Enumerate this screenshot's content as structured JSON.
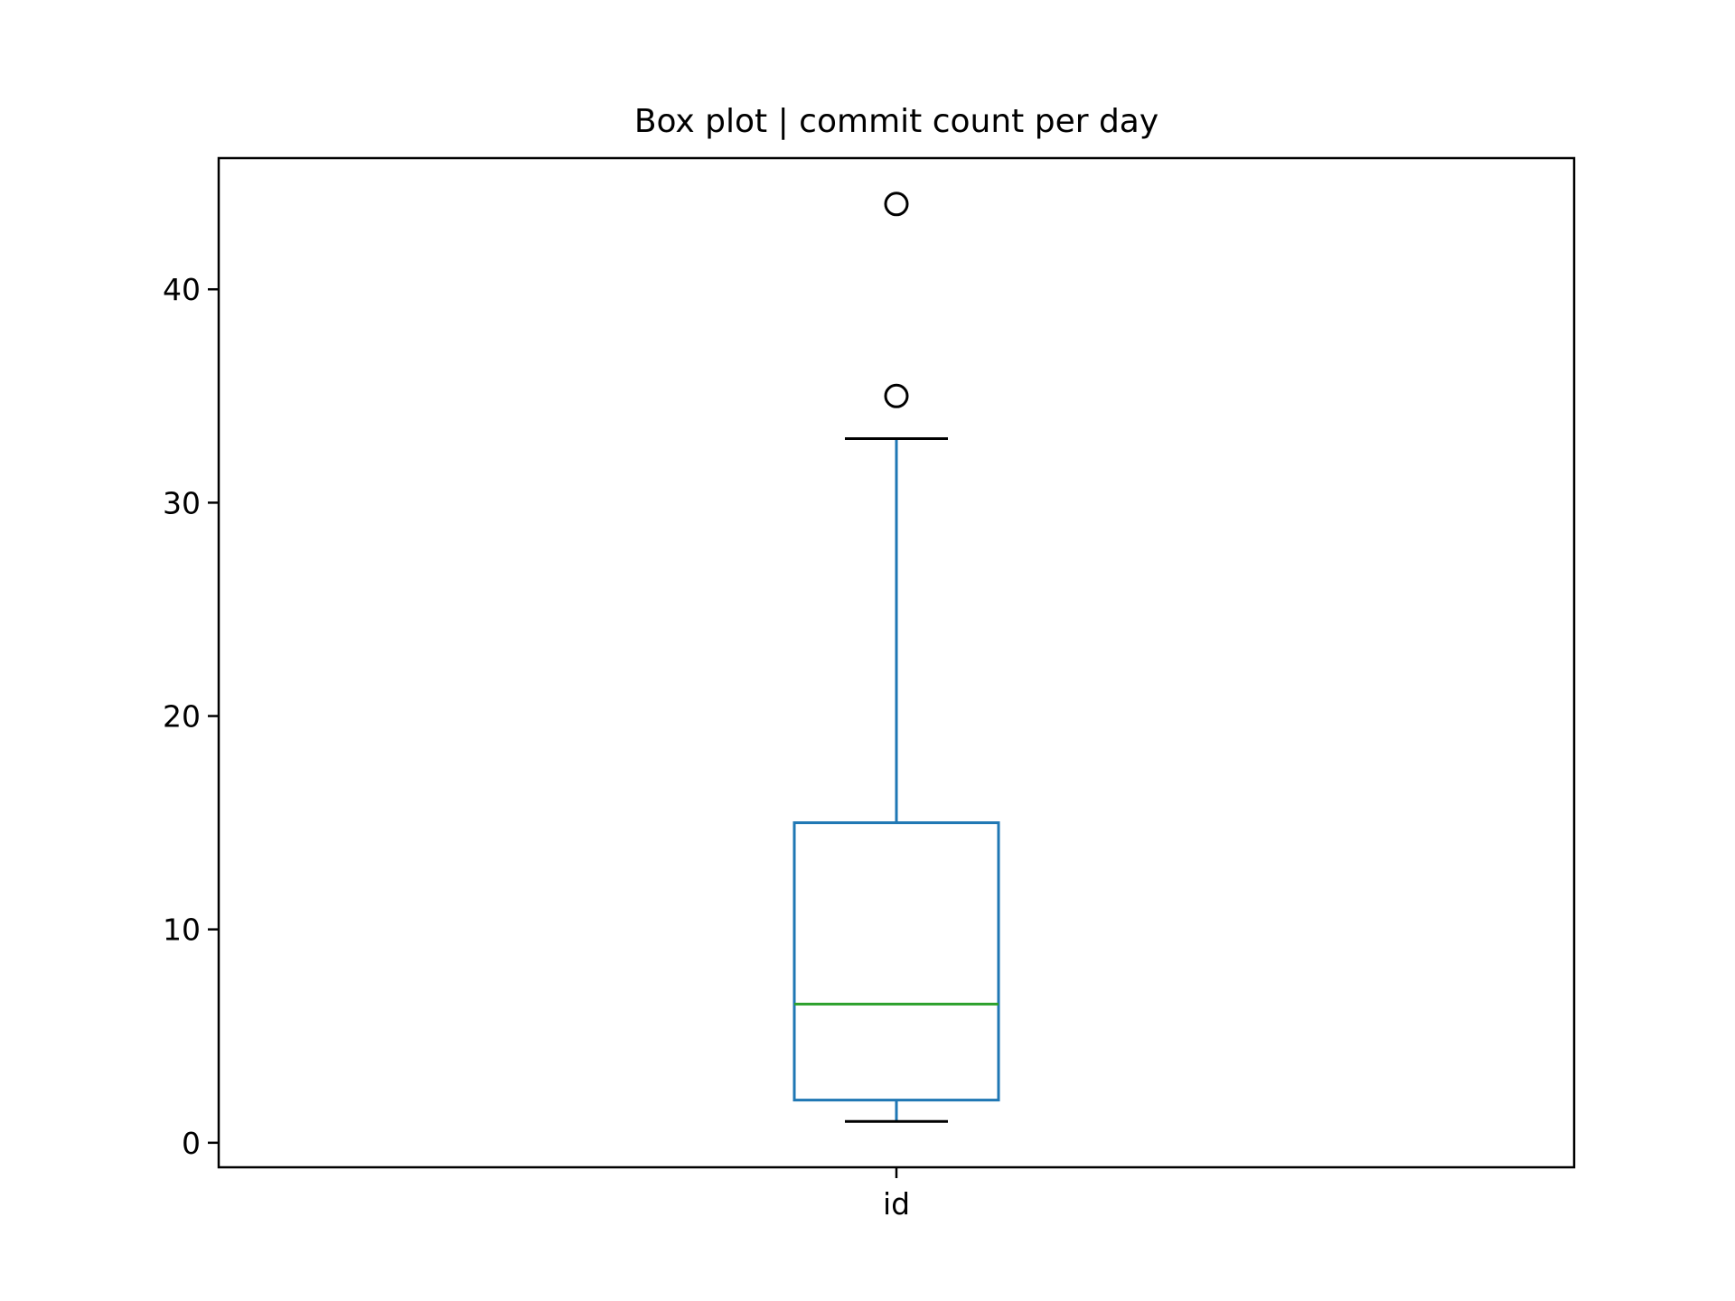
{
  "chart_data": {
    "type": "box",
    "title": "Box plot | commit count per day",
    "xlabel": "",
    "ylabel": "",
    "categories": [
      "id"
    ],
    "ylim": [
      -1.15,
      46.15
    ],
    "yticks": [
      0,
      10,
      20,
      30,
      40
    ],
    "grid": false,
    "boxes": [
      {
        "category": "id",
        "whisker_low": 1,
        "q1": 2,
        "median": 6.5,
        "q3": 15,
        "whisker_high": 33,
        "outliers": [
          35,
          44
        ]
      }
    ],
    "colors": {
      "box": "#1f77b4",
      "whisker": "#1f77b4",
      "median": "#2ca02c",
      "caps": "#000000",
      "outlier": "#000000",
      "axes": "#000000"
    }
  }
}
